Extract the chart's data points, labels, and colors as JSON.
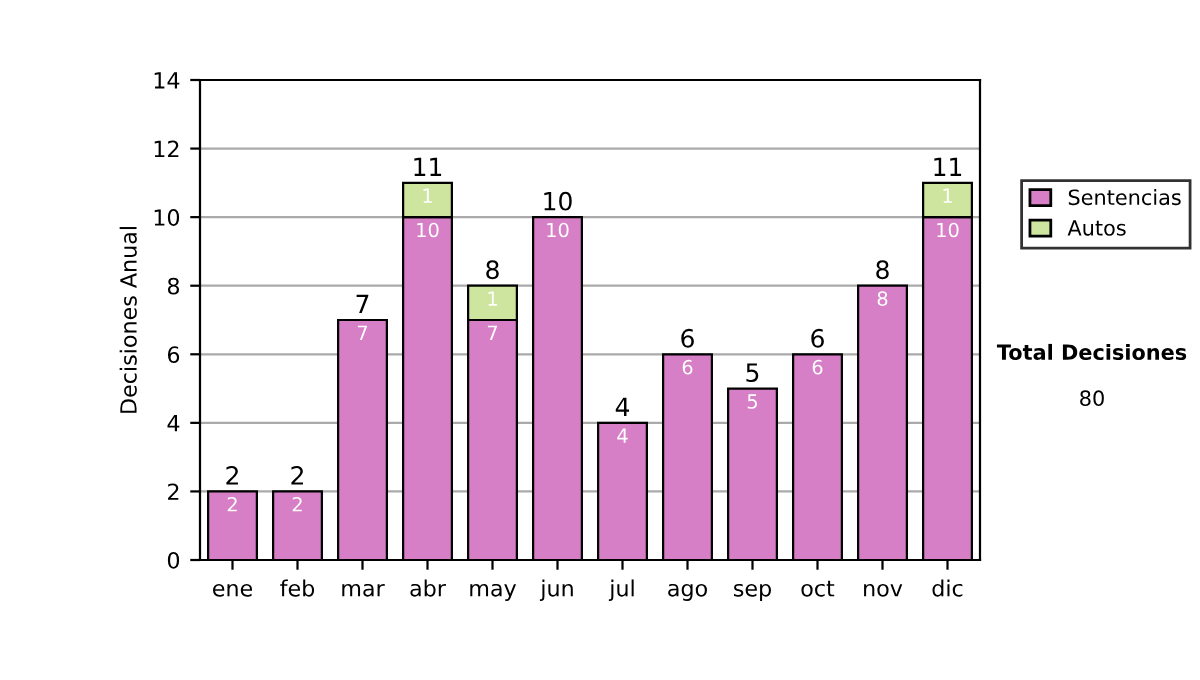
{
  "chart_data": {
    "type": "bar",
    "stacked": true,
    "ylabel": "Decisiones Anual",
    "categories": [
      "ene",
      "feb",
      "mar",
      "abr",
      "may",
      "jun",
      "jul",
      "ago",
      "sep",
      "oct",
      "nov",
      "dic"
    ],
    "series": [
      {
        "name": "Sentencias",
        "color": "#d77fc6",
        "values": [
          2,
          2,
          7,
          10,
          7,
          10,
          4,
          6,
          5,
          6,
          8,
          10
        ]
      },
      {
        "name": "Autos",
        "color": "#cde59e",
        "values": [
          null,
          null,
          null,
          1,
          1,
          null,
          null,
          null,
          null,
          null,
          null,
          1
        ]
      }
    ],
    "totals": [
      "2",
      "2",
      "7",
      "11",
      "8",
      "10",
      "4",
      "6",
      "5",
      "6",
      "8",
      "11"
    ],
    "data_labels": true,
    "ylim": [
      0,
      14
    ],
    "yticks": [
      0,
      2,
      4,
      6,
      8,
      10,
      12,
      14
    ],
    "grid": "y",
    "legend": "right",
    "annotations": [
      "Total Decisiones",
      "80"
    ]
  }
}
